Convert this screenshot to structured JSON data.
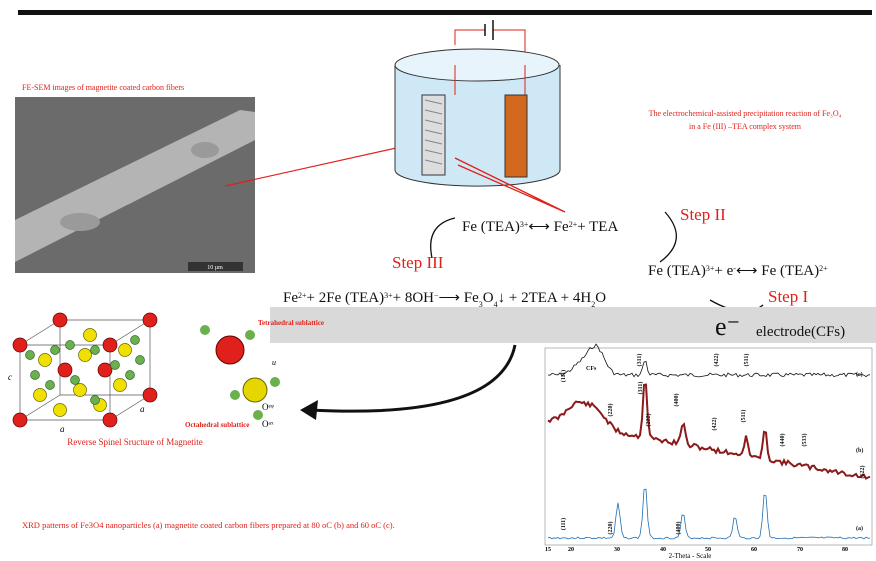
{
  "sem": {
    "caption": "FE-SEM images of magnetite coated carbon fibers",
    "scale_bar": "10 µm"
  },
  "cell": {
    "caption": [
      "The electrochemical-assisted precipitation reaction of Fe₃O₄",
      "in a Fe (III) –TEA complex system"
    ]
  },
  "steps": {
    "step1": "Step I",
    "step2": "Step II",
    "step3": "Step III"
  },
  "equations": {
    "eq1": [
      "Fe (TEA)",
      {
        "sup": "3+"
      },
      "⟷ Fe",
      {
        "sup": "2+"
      },
      "+ TEA"
    ],
    "eq2": [
      "Fe (TEA)",
      {
        "sup": "3+"
      },
      "+ e",
      {
        "sup": "-"
      },
      "⟷ Fe (TEA)",
      {
        "sup": "2+"
      }
    ],
    "eq3": [
      "Fe",
      {
        "sup": "2+"
      },
      "+ 2Fe (TEA)",
      {
        "sup": "3+"
      },
      "+ 8OH",
      {
        "sup": "−"
      },
      "⟶ Fe",
      {
        "sub": "3"
      },
      "O",
      {
        "sub": "4"
      },
      "↓ + 2TEA + 4H",
      {
        "sub": "2"
      },
      "O"
    ]
  },
  "electrode": {
    "electron": "e⁻",
    "label": "electrode(CFs)"
  },
  "crystal": {
    "tetrahedral": "Tetrahedral sublattice",
    "octahedral": "Octahedral sublattice",
    "caption": "Reverse Spinel Sructure of Magnetite",
    "axis_c": "c",
    "axis_a1": "a",
    "axis_a2": "a",
    "u": "u",
    "oeq": "Oᵉᵠ",
    "oax": "Oᵃˣ"
  },
  "xrd": {
    "caption": "XRD patterns of Fe3O4 nanoparticles (a) magnetite coated carbon fibers prepared at 80 oC (b) and 60 oC (c).",
    "x_axis_label": "2-Theta - Scale",
    "x_tick_labels": [
      "15",
      "20",
      "30",
      "40",
      "50",
      "60",
      "70",
      "80"
    ],
    "curve_labels": [
      "(a)",
      "(b)",
      "(c)"
    ],
    "cfs": "CFs",
    "peaks": [
      "(111)",
      "(220)",
      "(311)",
      "(222)",
      "(400)",
      "(422)",
      "(511)",
      "(440)",
      "(533)",
      "(622)",
      "(111)",
      "(220)",
      "(311)",
      "(400)",
      "(422)",
      "(511)"
    ]
  }
}
